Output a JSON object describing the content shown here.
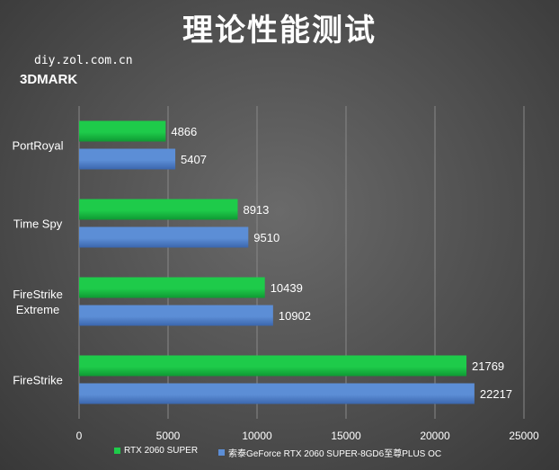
{
  "title": "理论性能测试",
  "source_text": "diy.zol.com.cn",
  "subtitle": "3DMARK",
  "colors": {
    "series1": "#1ecb4a",
    "series1_dark": "#0f9a33",
    "series2": "#5c8ed6",
    "series2_dark": "#3b66ad",
    "text": "#ffffff",
    "grid": "#888888"
  },
  "chart_data": {
    "type": "bar",
    "orientation": "horizontal",
    "categories": [
      "PortRoyal",
      "Time Spy",
      "FireStrike Extreme",
      "FireStrike"
    ],
    "category_lines": [
      [
        "PortRoyal"
      ],
      [
        "Time Spy"
      ],
      [
        "FireStrike",
        "Extreme"
      ],
      [
        "FireStrike"
      ]
    ],
    "series": [
      {
        "name": "RTX 2060 SUPER",
        "values": [
          4866,
          8913,
          10439,
          21769
        ]
      },
      {
        "name": "索泰GeForce RTX 2060 SUPER-8GD6至尊PLUS OC",
        "values": [
          5407,
          9510,
          10902,
          22217
        ]
      }
    ],
    "xlim": [
      0,
      25000
    ],
    "xticks": [
      0,
      5000,
      10000,
      15000,
      20000,
      25000
    ],
    "grid": true,
    "legend_position": "bottom"
  }
}
